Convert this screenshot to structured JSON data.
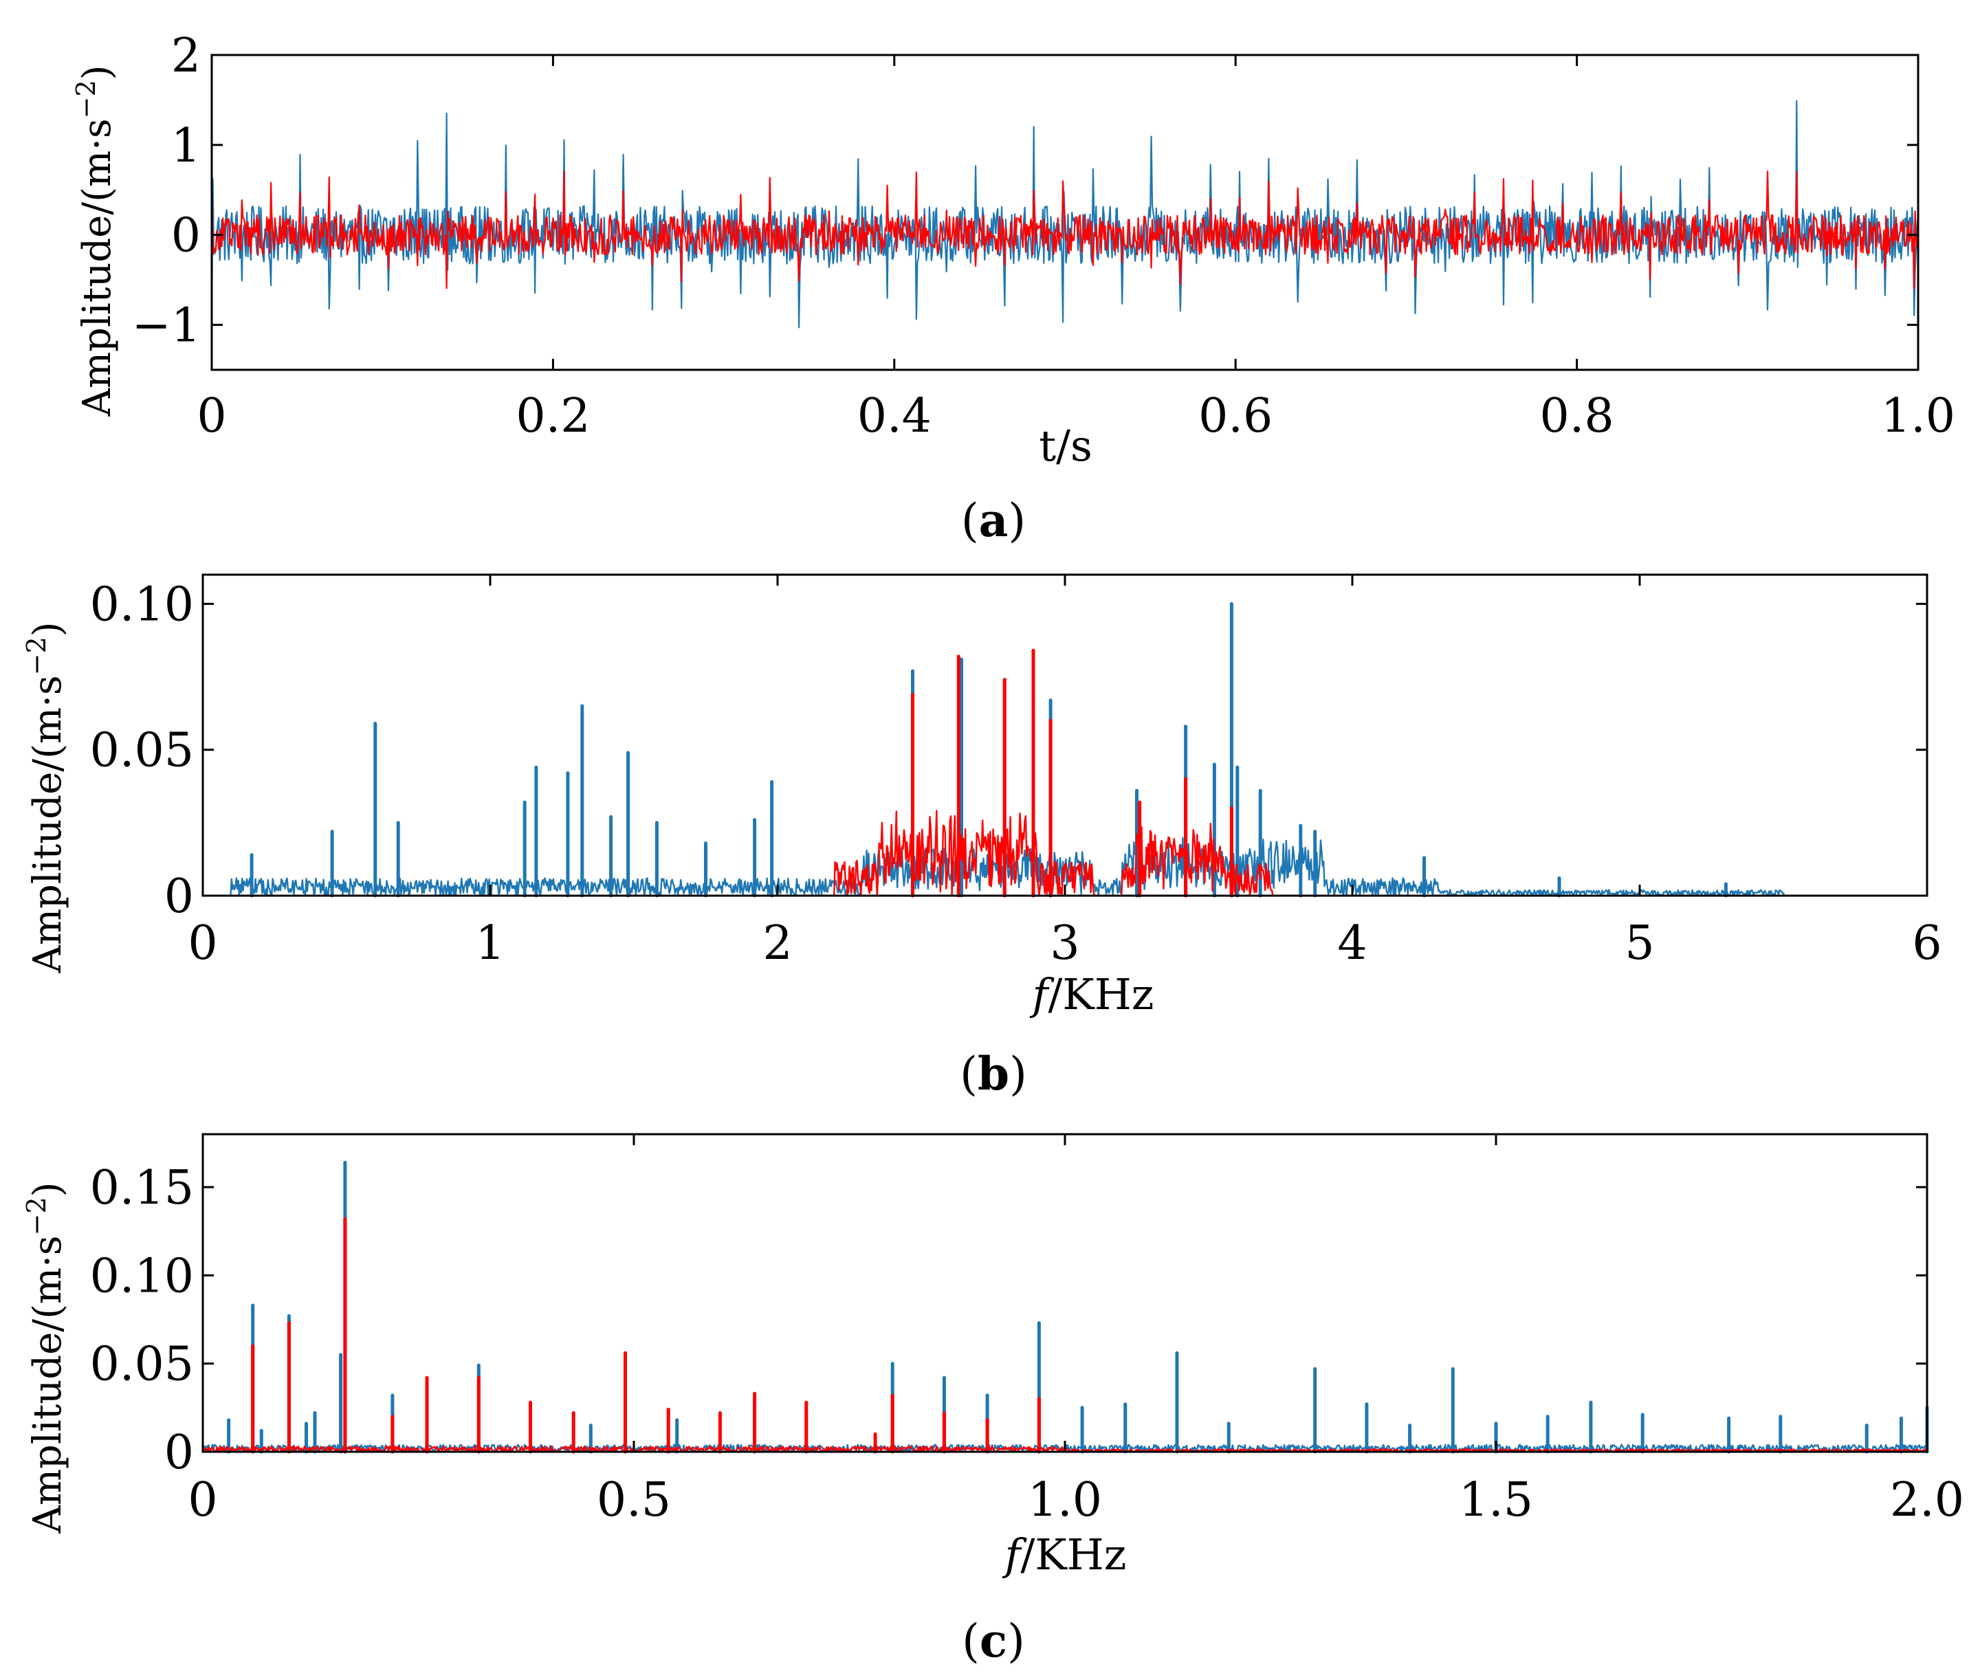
{
  "colors": {
    "series_blue": "#1f77b4",
    "series_red": "#ff0000",
    "axis": "#000000"
  },
  "chart_data": [
    {
      "id": "a",
      "type": "line",
      "caption": "a",
      "title": "",
      "xlabel": "t/s",
      "ylabel": "Amplitude/(m·s",
      "ylabel_sup": "−2",
      "ylabel_close": ")",
      "xlim": [
        0,
        1.0
      ],
      "ylim": [
        -1.5,
        2
      ],
      "xticks": [
        0,
        0.2,
        0.4,
        0.6,
        0.8,
        1.0
      ],
      "xtick_labels": [
        "0",
        "0.2",
        "0.4",
        "0.6",
        "0.8",
        "1.0"
      ],
      "yticks": [
        -1,
        0,
        1,
        2
      ],
      "ytick_labels": [
        "−1",
        "0",
        "1",
        "2"
      ],
      "series": [
        {
          "name": "blue-signal",
          "color": "#1f77b4",
          "kind": "time",
          "impulse_period": 0.0172,
          "impulse_peak_max": 1.55,
          "impulse_peak_min": 1.05,
          "noise": 0.32,
          "samples": 1700
        },
        {
          "name": "red-signal",
          "color": "#ff0000",
          "kind": "time",
          "impulse_period": 0.0172,
          "impulse_peak_max": 0.85,
          "impulse_peak_min": 0.55,
          "noise": 0.22,
          "samples": 1700
        }
      ]
    },
    {
      "id": "b",
      "type": "line",
      "caption": "b",
      "title": "",
      "xlabel_italic": "f",
      "xlabel": "/KHz",
      "ylabel": "Amplitude/(m·s",
      "ylabel_sup": "−2",
      "ylabel_close": ")",
      "xlim": [
        0,
        6
      ],
      "ylim": [
        0,
        0.11
      ],
      "xticks": [
        0,
        1,
        2,
        3,
        4,
        5,
        6
      ],
      "xtick_labels": [
        "0",
        "1",
        "2",
        "3",
        "4",
        "5",
        "6"
      ],
      "yticks": [
        0,
        0.05,
        0.1
      ],
      "ytick_labels": [
        "0",
        "0.05",
        "0.10"
      ],
      "series": [
        {
          "name": "blue-spectrum",
          "color": "#1f77b4",
          "kind": "spectrum",
          "bands": [
            [
              0.1,
              4.3,
              0.006
            ],
            [
              4.3,
              5.5,
              0.002
            ],
            [
              2.3,
              3.1,
              0.012
            ],
            [
              3.2,
              3.9,
              0.014
            ]
          ],
          "peaks": [
            [
              0.17,
              0.014
            ],
            [
              0.45,
              0.022
            ],
            [
              0.6,
              0.059
            ],
            [
              0.68,
              0.025
            ],
            [
              1.12,
              0.032
            ],
            [
              1.16,
              0.044
            ],
            [
              1.27,
              0.042
            ],
            [
              1.32,
              0.065
            ],
            [
              1.42,
              0.027
            ],
            [
              1.48,
              0.049
            ],
            [
              1.58,
              0.025
            ],
            [
              1.75,
              0.018
            ],
            [
              1.92,
              0.026
            ],
            [
              1.98,
              0.039
            ],
            [
              2.47,
              0.077
            ],
            [
              2.64,
              0.081
            ],
            [
              2.79,
              0.074
            ],
            [
              2.89,
              0.084
            ],
            [
              2.95,
              0.067
            ],
            [
              3.25,
              0.036
            ],
            [
              3.42,
              0.058
            ],
            [
              3.52,
              0.045
            ],
            [
              3.58,
              0.1
            ],
            [
              3.6,
              0.044
            ],
            [
              3.68,
              0.036
            ],
            [
              3.82,
              0.024
            ],
            [
              3.87,
              0.022
            ],
            [
              4.25,
              0.013
            ],
            [
              4.72,
              0.006
            ],
            [
              5.3,
              0.004
            ]
          ]
        },
        {
          "name": "red-spectrum",
          "color": "#ff0000",
          "kind": "spectrum",
          "bands": [
            [
              2.2,
              3.1,
              0.012
            ],
            [
              3.2,
              3.72,
              0.011
            ],
            [
              2.35,
              2.9,
              0.018
            ],
            [
              3.25,
              3.55,
              0.016
            ]
          ],
          "peaks": [
            [
              2.47,
              0.069
            ],
            [
              2.63,
              0.082
            ],
            [
              2.79,
              0.074
            ],
            [
              2.89,
              0.084
            ],
            [
              2.95,
              0.06
            ],
            [
              3.26,
              0.032
            ],
            [
              3.42,
              0.04
            ],
            [
              3.58,
              0.03
            ]
          ]
        }
      ]
    },
    {
      "id": "c",
      "type": "line",
      "caption": "c",
      "title": "",
      "xlabel_italic": "f",
      "xlabel": "/KHz",
      "ylabel": "Amplitude/(m·s",
      "ylabel_sup": "−2",
      "ylabel_close": ")",
      "xlim": [
        0,
        2.0
      ],
      "ylim": [
        0,
        0.18
      ],
      "xticks": [
        0,
        0.5,
        1.0,
        1.5,
        2.0
      ],
      "xtick_labels": [
        "0",
        "0.5",
        "1.0",
        "1.5",
        "2.0"
      ],
      "yticks": [
        0,
        0.05,
        0.1,
        0.15
      ],
      "ytick_labels": [
        "0",
        "0.05",
        "0.10",
        "0.15"
      ],
      "series": [
        {
          "name": "blue-envelope-spectrum",
          "color": "#1f77b4",
          "kind": "spectrum",
          "bands": [
            [
              0.0,
              2.0,
              0.004
            ]
          ],
          "peaks": [
            [
              0.03,
              0.018
            ],
            [
              0.058,
              0.083
            ],
            [
              0.068,
              0.012
            ],
            [
              0.1,
              0.077
            ],
            [
              0.12,
              0.016
            ],
            [
              0.13,
              0.022
            ],
            [
              0.16,
              0.055
            ],
            [
              0.165,
              0.164
            ],
            [
              0.22,
              0.032
            ],
            [
              0.26,
              0.036
            ],
            [
              0.32,
              0.049
            ],
            [
              0.38,
              0.02
            ],
            [
              0.45,
              0.015
            ],
            [
              0.49,
              0.025
            ],
            [
              0.55,
              0.018
            ],
            [
              0.64,
              0.028
            ],
            [
              0.7,
              0.02
            ],
            [
              0.8,
              0.05
            ],
            [
              0.86,
              0.042
            ],
            [
              0.91,
              0.032
            ],
            [
              0.97,
              0.073
            ],
            [
              1.02,
              0.025
            ],
            [
              1.07,
              0.027
            ],
            [
              1.13,
              0.056
            ],
            [
              1.19,
              0.016
            ],
            [
              1.29,
              0.047
            ],
            [
              1.35,
              0.027
            ],
            [
              1.4,
              0.015
            ],
            [
              1.45,
              0.047
            ],
            [
              1.5,
              0.016
            ],
            [
              1.56,
              0.02
            ],
            [
              1.61,
              0.028
            ],
            [
              1.67,
              0.021
            ],
            [
              1.77,
              0.019
            ],
            [
              1.83,
              0.02
            ],
            [
              1.93,
              0.015
            ],
            [
              1.97,
              0.019
            ],
            [
              2.0,
              0.025
            ]
          ]
        },
        {
          "name": "red-envelope-spectrum",
          "color": "#ff0000",
          "kind": "spectrum",
          "bands": [
            [
              0.0,
              1.0,
              0.003
            ],
            [
              1.0,
              2.0,
              0.0015
            ]
          ],
          "peaks": [
            [
              0.058,
              0.06
            ],
            [
              0.1,
              0.073
            ],
            [
              0.165,
              0.132
            ],
            [
              0.22,
              0.02
            ],
            [
              0.26,
              0.042
            ],
            [
              0.32,
              0.042
            ],
            [
              0.38,
              0.028
            ],
            [
              0.43,
              0.022
            ],
            [
              0.49,
              0.056
            ],
            [
              0.54,
              0.024
            ],
            [
              0.6,
              0.022
            ],
            [
              0.64,
              0.033
            ],
            [
              0.7,
              0.028
            ],
            [
              0.78,
              0.01
            ],
            [
              0.8,
              0.032
            ],
            [
              0.86,
              0.022
            ],
            [
              0.91,
              0.018
            ],
            [
              0.97,
              0.03
            ]
          ]
        }
      ]
    }
  ]
}
